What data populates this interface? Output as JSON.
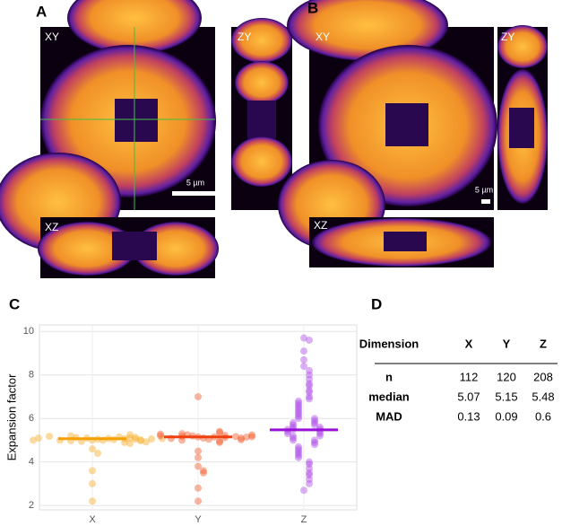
{
  "panels": {
    "a": {
      "letter": "A",
      "xy": "XY",
      "zy": "ZY",
      "xz": "XZ",
      "scale": "5 µm"
    },
    "b": {
      "letter": "B",
      "xy": "XY",
      "zy": "ZY",
      "xz": "XZ",
      "scale": "5 µm"
    },
    "c": {
      "letter": "C"
    },
    "d": {
      "letter": "D"
    }
  },
  "chart_data": {
    "type": "beeswarm",
    "y_label": "Expansion factor",
    "categories": [
      "X",
      "Y",
      "Z"
    ],
    "colors": [
      "#f7ad2a",
      "#f25c2a",
      "#b050e8"
    ],
    "median_colors": [
      "#f5a000",
      "#f04010",
      "#9a10d8"
    ],
    "medians": [
      5.07,
      5.15,
      5.48
    ],
    "groups": [
      [
        5.0,
        5.05,
        5.1,
        5.0,
        4.95,
        5.08,
        5.12,
        5.03,
        4.98,
        5.15,
        5.2,
        5.07,
        5.0,
        5.1,
        4.9,
        5.05,
        5.13,
        5.02,
        5.18,
        4.97,
        5.1,
        5.06,
        5.0,
        4.92,
        5.25,
        5.08,
        4.85,
        4.6,
        4.4,
        3.6,
        3.0,
        2.2
      ],
      [
        5.15,
        5.1,
        5.2,
        5.05,
        5.25,
        5.15,
        5.18,
        5.0,
        5.3,
        5.12,
        5.22,
        5.08,
        5.35,
        5.17,
        4.95,
        5.2,
        5.1,
        5.28,
        5.14,
        5.4,
        5.02,
        5.16,
        5.24,
        4.9,
        7.0,
        4.5,
        4.2,
        3.8,
        3.6,
        3.5,
        2.8,
        2.2
      ],
      [
        9.7,
        9.6,
        9.1,
        8.7,
        8.4,
        8.2,
        8.0,
        7.8,
        7.6,
        7.5,
        7.3,
        7.2,
        7.0,
        6.9,
        6.8,
        6.7,
        6.6,
        6.5,
        6.4,
        6.3,
        6.2,
        6.1,
        6.0,
        6.0,
        5.9,
        5.8,
        5.8,
        5.7,
        5.7,
        5.6,
        5.6,
        5.5,
        5.5,
        5.5,
        5.4,
        5.4,
        5.3,
        5.3,
        5.2,
        5.2,
        5.1,
        5.0,
        5.0,
        4.9,
        4.8,
        4.7,
        4.6,
        4.5,
        4.4,
        4.3,
        4.2,
        4.0,
        3.9,
        3.7,
        3.5,
        3.4,
        3.2,
        3.0,
        2.7
      ]
    ],
    "ylim": [
      1.8,
      10.3
    ],
    "yticks": [
      2,
      4,
      6,
      8,
      10
    ],
    "grid": true
  },
  "table": {
    "header": [
      "Dimension",
      "X",
      "Y",
      "Z"
    ],
    "rows": [
      [
        "n",
        "112",
        "120",
        "208"
      ],
      [
        "median",
        "5.07",
        "5.15",
        "5.48"
      ],
      [
        "MAD",
        "0.13",
        "0.09",
        "0.6"
      ]
    ]
  }
}
